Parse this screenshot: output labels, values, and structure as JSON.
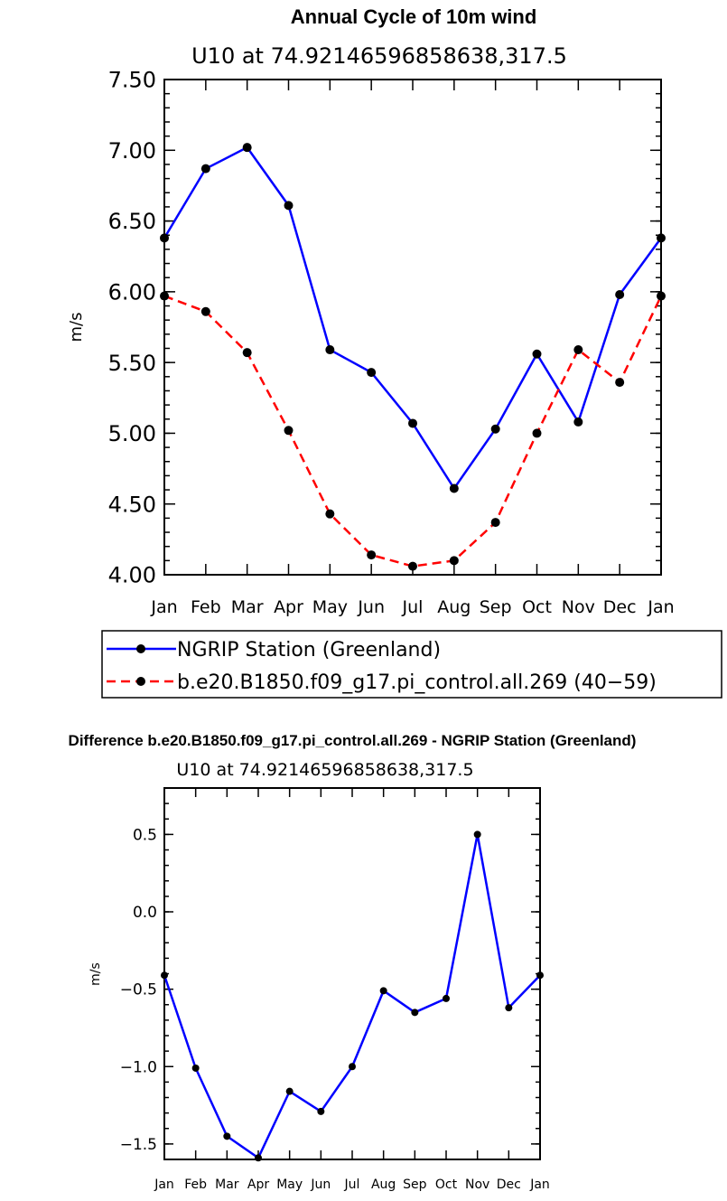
{
  "chart_data": [
    {
      "type": "line",
      "title": "Annual Cycle of 10m wind",
      "subtitle": "U10 at 74.92146596858638,317.5",
      "xlabel": "",
      "ylabel": "m/s",
      "ylim": [
        4.0,
        7.5
      ],
      "yticks": [
        "4.00",
        "4.50",
        "5.00",
        "5.50",
        "6.00",
        "6.50",
        "7.00",
        "7.50"
      ],
      "categories": [
        "Jan",
        "Feb",
        "Mar",
        "Apr",
        "May",
        "Jun",
        "Jul",
        "Aug",
        "Sep",
        "Oct",
        "Nov",
        "Dec",
        "Jan"
      ],
      "series": [
        {
          "name": "NGRIP Station (Greenland)",
          "color": "#0000ff",
          "dash": "solid",
          "values": [
            6.38,
            6.87,
            7.02,
            6.61,
            5.59,
            5.43,
            5.07,
            4.61,
            5.03,
            5.56,
            5.08,
            5.98,
            6.38
          ]
        },
        {
          "name": "b.e20.B1850.f09_g17.pi_control.all.269 (40−59)",
          "color": "#ff0000",
          "dash": "dashed",
          "values": [
            5.97,
            5.86,
            5.57,
            5.02,
            4.43,
            4.14,
            4.06,
            4.1,
            4.37,
            5.0,
            5.59,
            5.36,
            5.97
          ]
        }
      ],
      "legend": "bottom"
    },
    {
      "type": "line",
      "title": "Difference b.e20.B1850.f09_g17.pi_control.all.269 - NGRIP Station (Greenland)",
      "subtitle": "U10 at 74.92146596858638,317.5",
      "xlabel": "",
      "ylabel": "m/s",
      "ylim": [
        -1.6,
        0.8
      ],
      "yticks": [
        "−1.5",
        "−1.0",
        "−0.5",
        "0.0",
        "0.5"
      ],
      "ytick_values": [
        -1.5,
        -1.0,
        -0.5,
        0.0,
        0.5
      ],
      "categories": [
        "Jan",
        "Feb",
        "Mar",
        "Apr",
        "May",
        "Jun",
        "Jul",
        "Aug",
        "Sep",
        "Oct",
        "Nov",
        "Dec",
        "Jan"
      ],
      "series": [
        {
          "name": "difference",
          "color": "#0000ff",
          "dash": "solid",
          "values": [
            -0.41,
            -1.01,
            -1.45,
            -1.59,
            -1.16,
            -1.29,
            -1.0,
            -0.51,
            -0.65,
            -0.56,
            0.5,
            -0.62,
            -0.41
          ]
        }
      ]
    }
  ]
}
